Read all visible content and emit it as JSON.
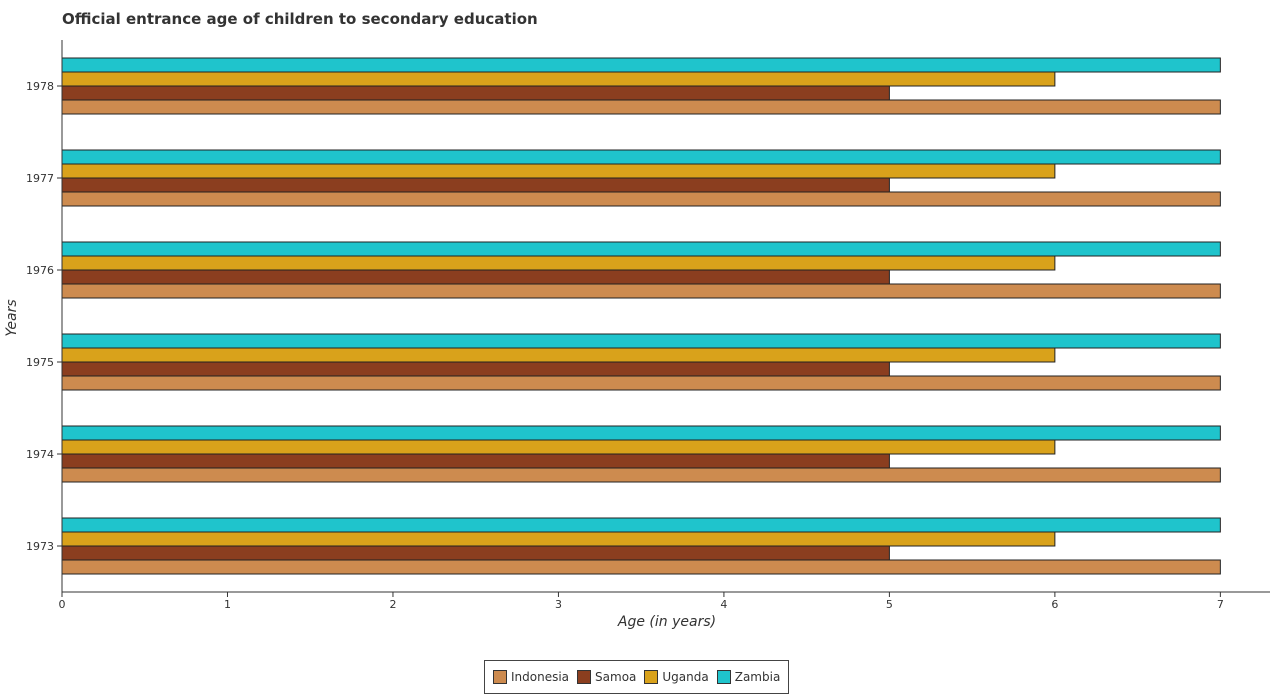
{
  "chart_data": {
    "type": "bar",
    "orientation": "horizontal",
    "title": "Official entrance age of children to secondary education",
    "xlabel": "Age (in years)",
    "ylabel": "Years",
    "xlim": [
      0,
      7.3
    ],
    "x_ticks": [
      "0",
      "1",
      "2",
      "3",
      "4",
      "5",
      "6",
      "7"
    ],
    "categories": [
      "1973",
      "1974",
      "1975",
      "1976",
      "1977",
      "1978"
    ],
    "series": [
      {
        "name": "Indonesia",
        "color": "#cd8b4f",
        "values": [
          7,
          7,
          7,
          7,
          7,
          7
        ]
      },
      {
        "name": "Samoa",
        "color": "#8b3e1f",
        "values": [
          5,
          5,
          5,
          5,
          5,
          5
        ]
      },
      {
        "name": "Uganda",
        "color": "#d9a21b",
        "values": [
          6,
          6,
          6,
          6,
          6,
          6
        ]
      },
      {
        "name": "Zambia",
        "color": "#1fc4cc",
        "values": [
          7,
          7,
          7,
          7,
          7,
          7
        ]
      }
    ],
    "legend_position": "bottom-center",
    "grid": false
  }
}
